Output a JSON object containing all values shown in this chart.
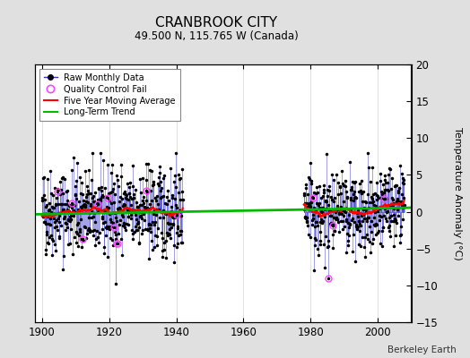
{
  "title": "CRANBROOK CITY",
  "subtitle": "49.500 N, 115.765 W (Canada)",
  "ylabel": "Temperature Anomaly (°C)",
  "attribution": "Berkeley Earth",
  "ylim": [
    -15,
    20
  ],
  "yticks": [
    -15,
    -10,
    -5,
    0,
    5,
    10,
    15,
    20
  ],
  "xlim": [
    1898,
    2010
  ],
  "xticks": [
    1900,
    1920,
    1940,
    1960,
    1980,
    2000
  ],
  "bg_color": "#e0e0e0",
  "plot_bg_color": "#ffffff",
  "data_color": "#3333cc",
  "dot_color": "#000000",
  "qc_color": "#ff44ff",
  "ma_color": "#ff0000",
  "trend_color": "#00bb00",
  "legend_entries": [
    "Raw Monthly Data",
    "Quality Control Fail",
    "Five Year Moving Average",
    "Long-Term Trend"
  ],
  "period1_start": 1900,
  "period1_end": 1942,
  "period2_start": 1978,
  "period2_end": 2008,
  "trend_x": [
    1898,
    2010
  ],
  "trend_y": [
    -0.35,
    0.55
  ]
}
